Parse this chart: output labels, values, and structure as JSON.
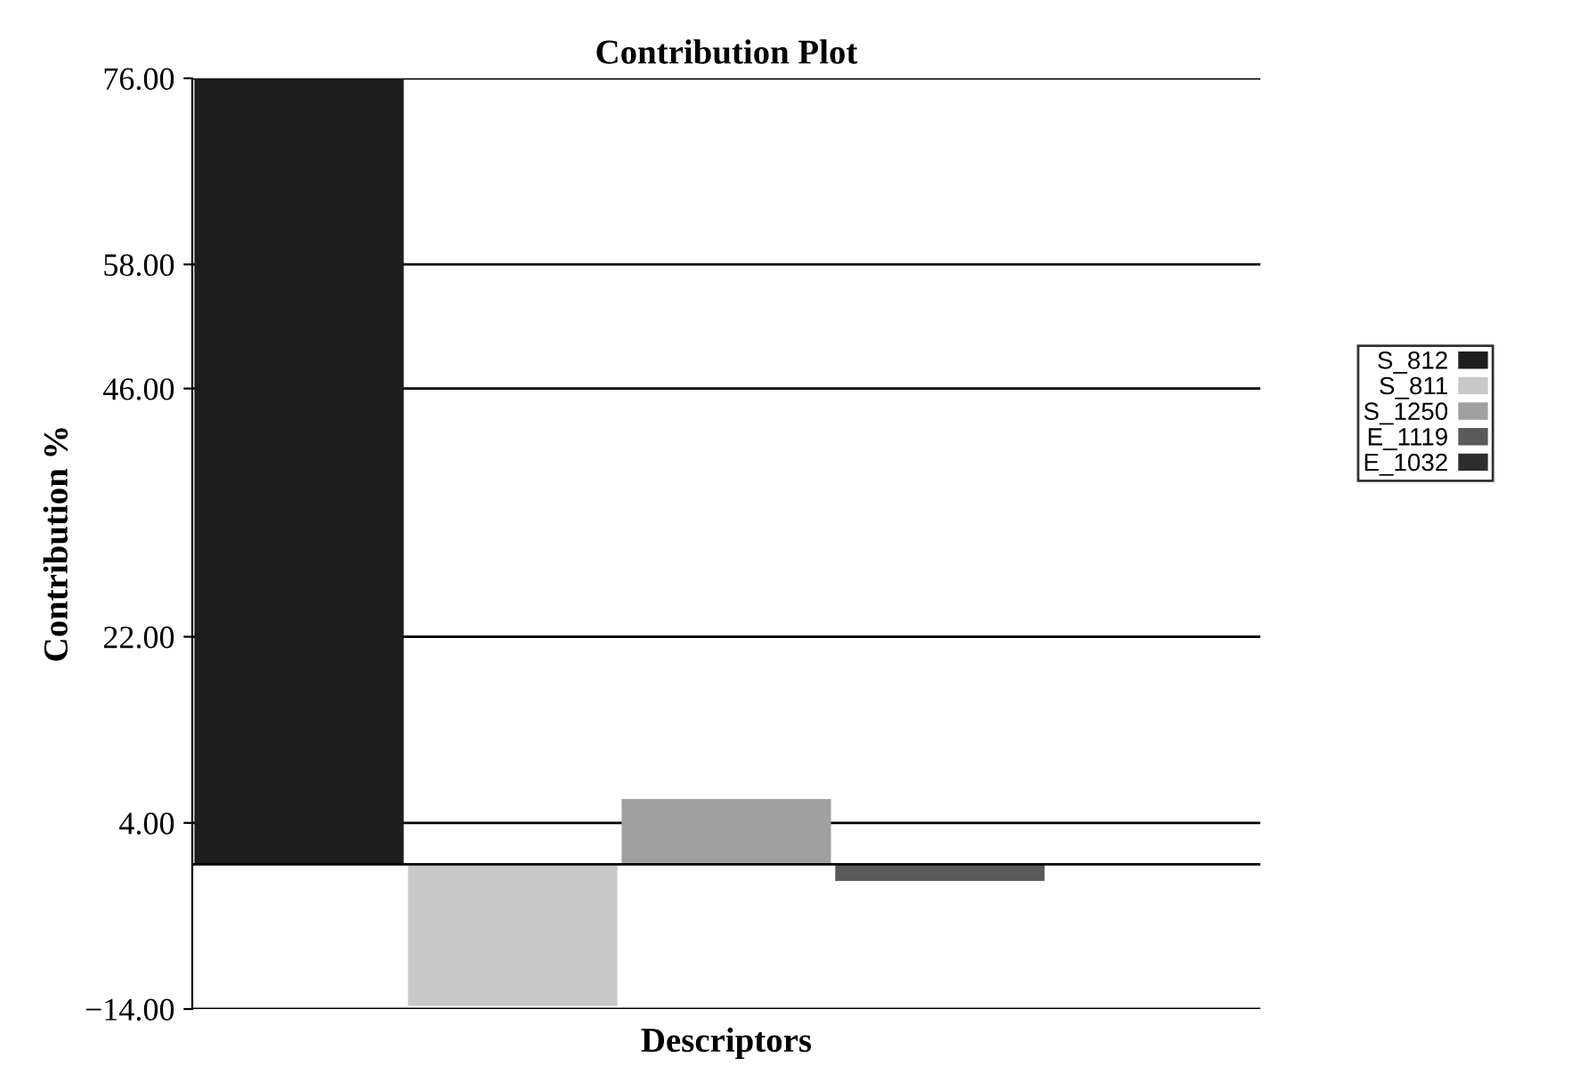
{
  "chart_data": {
    "type": "bar",
    "title": "Contribution Plot",
    "xlabel": "Descriptors",
    "ylabel": "Contribution %",
    "categories": [
      null,
      null,
      null,
      null,
      null
    ],
    "series": [
      {
        "name": "S_812",
        "color": "#1e1e1e",
        "values": [
          76,
          null,
          null,
          null,
          null
        ]
      },
      {
        "name": "S_811",
        "color": "#c8c8c8",
        "values": [
          null,
          -13.7,
          null,
          null,
          null
        ]
      },
      {
        "name": "S_1250",
        "color": "#a0a0a0",
        "values": [
          null,
          null,
          6.3,
          null,
          null
        ]
      },
      {
        "name": "E_1119",
        "color": "#5a5a5a",
        "values": [
          null,
          null,
          null,
          -1.6,
          null
        ]
      },
      {
        "name": "E_1032",
        "color": "#2e2e2e",
        "values": [
          null,
          null,
          null,
          null,
          0
        ]
      }
    ],
    "ylim": [
      -14,
      76
    ],
    "yticks": [
      {
        "value": -14,
        "label": "−14.00"
      },
      {
        "value": 4,
        "label": "4.00"
      },
      {
        "value": 22,
        "label": "22.00"
      },
      {
        "value": 46,
        "label": "46.00"
      },
      {
        "value": 58,
        "label": "58.00"
      },
      {
        "value": 76,
        "label": "76.00"
      }
    ],
    "ref_lines": [
      {
        "axis": "y",
        "value": 0,
        "label": null,
        "color": "#000000"
      }
    ],
    "grid": "y",
    "legend": "right"
  }
}
